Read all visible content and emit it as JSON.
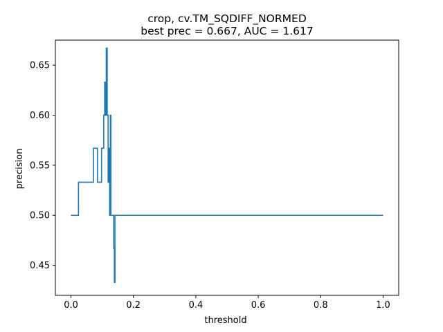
{
  "chart_data": {
    "type": "line",
    "title_line1": "crop, cv.TM_SQDIFF_NORMED",
    "title_line2": "best prec = 0.667, AUC = 1.617",
    "xlabel": "threshold",
    "ylabel": "precision",
    "xlim": [
      -0.05,
      1.05
    ],
    "ylim": [
      0.42,
      0.675
    ],
    "x_ticks": [
      0.0,
      0.2,
      0.4,
      0.6,
      0.8,
      1.0
    ],
    "x_tick_labels": [
      "0.0",
      "0.2",
      "0.4",
      "0.6",
      "0.8",
      "1.0"
    ],
    "y_ticks": [
      0.45,
      0.5,
      0.55,
      0.6,
      0.65
    ],
    "y_tick_labels": [
      "0.45",
      "0.50",
      "0.55",
      "0.60",
      "0.65"
    ],
    "grid": false,
    "series": [
      {
        "color": "#1f77b4",
        "step": true,
        "x": [
          0.0,
          0.024,
          0.072,
          0.085,
          0.098,
          0.105,
          0.108,
          0.111,
          0.113,
          0.116,
          0.119,
          0.121,
          0.124,
          0.126,
          0.128,
          0.137,
          0.139,
          0.141,
          1.0
        ],
        "y": [
          0.5,
          0.533,
          0.567,
          0.533,
          0.567,
          0.6,
          0.633,
          0.6,
          0.667,
          0.6,
          0.533,
          0.567,
          0.5,
          0.6,
          0.5,
          0.467,
          0.433,
          0.5,
          0.5
        ]
      }
    ]
  }
}
